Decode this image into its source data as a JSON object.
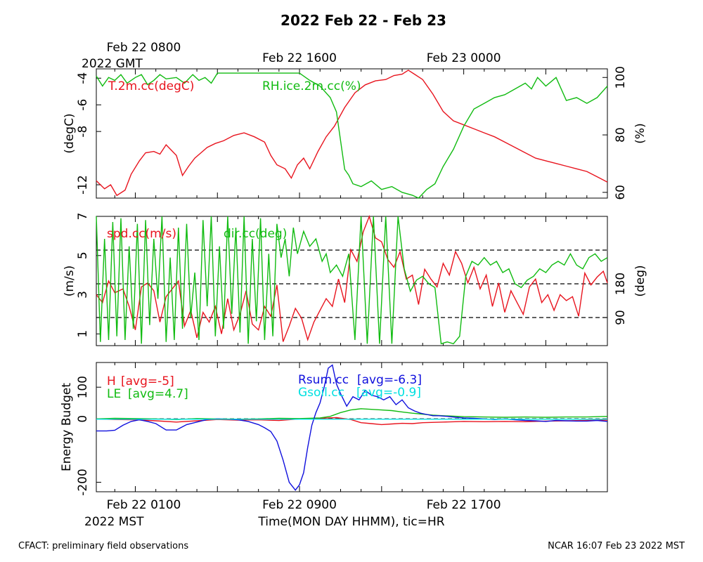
{
  "title": "2022 Feb 22 - Feb 23",
  "top_axis": {
    "ticks": [
      {
        "label": "Feb 22 0800",
        "hour": 0
      },
      {
        "label": "Feb 22 1600",
        "hour": 8
      },
      {
        "label": "Feb 23 0000",
        "hour": 16
      }
    ],
    "zone_label": "2022 GMT"
  },
  "bottom_axis": {
    "ticks": [
      {
        "label": "Feb 22 0100",
        "hour": 0
      },
      {
        "label": "Feb 22 0900",
        "hour": 8
      },
      {
        "label": "Feb 22 1700",
        "hour": 16
      }
    ],
    "zone_label": "2022 MST",
    "xlabel": "Time(MON DAY HHMM), tic=HR"
  },
  "footer": {
    "left": "CFACT: preliminary field observations",
    "right": "NCAR 16:07 Feb 23 2022 MST"
  },
  "colors": {
    "red": "#e8141e",
    "green": "#11bb11",
    "blue": "#1010dd",
    "cyan": "#00e0e0"
  },
  "chart_data": [
    {
      "type": "line",
      "panel": "temperature_rh",
      "xlabel": "",
      "ylabel": "(degC)",
      "y2label": "(%)",
      "x_range_hours": [
        -1.9,
        23
      ],
      "ylim": [
        -13,
        -3.3
      ],
      "y_ticks": [
        -4,
        -6,
        -8,
        -12
      ],
      "y2lim": [
        58,
        103
      ],
      "y2_ticks": [
        100,
        80,
        60
      ],
      "series": [
        {
          "name": "T.2m.cc(degC)",
          "axis": "left",
          "color": "red",
          "x": [
            -1.9,
            -1.5,
            -1.2,
            -0.9,
            -0.5,
            -0.2,
            0.2,
            0.5,
            0.9,
            1.2,
            1.5,
            2.0,
            2.3,
            2.6,
            2.9,
            3.2,
            3.5,
            3.9,
            4.3,
            4.8,
            5.3,
            5.8,
            6.3,
            6.6,
            6.9,
            7.3,
            7.6,
            7.9,
            8.2,
            8.5,
            8.9,
            9.3,
            9.7,
            10.2,
            10.7,
            11.2,
            11.7,
            12.2,
            12.6,
            13.0,
            13.3,
            13.6,
            14.0,
            14.5,
            15.0,
            15.5,
            16.0,
            16.5,
            17.0,
            17.5,
            18.0,
            18.5,
            19.0,
            19.5,
            20.0,
            20.5,
            21.0,
            21.5,
            22.0,
            22.5,
            23.0
          ],
          "y": [
            -11.7,
            -12.3,
            -12.0,
            -12.8,
            -12.4,
            -11.2,
            -10.2,
            -9.6,
            -9.5,
            -9.7,
            -9.0,
            -9.8,
            -11.3,
            -10.6,
            -10.0,
            -9.6,
            -9.2,
            -8.9,
            -8.7,
            -8.3,
            -8.1,
            -8.4,
            -8.8,
            -9.8,
            -10.5,
            -10.8,
            -11.5,
            -10.5,
            -10.0,
            -10.8,
            -9.5,
            -8.4,
            -7.6,
            -6.2,
            -5.1,
            -4.5,
            -4.2,
            -4.1,
            -3.8,
            -3.7,
            -3.4,
            -3.7,
            -4.1,
            -5.2,
            -6.5,
            -7.2,
            -7.5,
            -7.8,
            -8.1,
            -8.4,
            -8.8,
            -9.2,
            -9.6,
            -10.0,
            -10.2,
            -10.4,
            -10.6,
            -10.8,
            -11.0,
            -11.4,
            -11.8
          ]
        },
        {
          "name": "RH.ice.2m.cc(%)",
          "axis": "right",
          "color": "green",
          "x": [
            -1.9,
            -1.6,
            -1.3,
            -1.0,
            -0.7,
            -0.4,
            0.0,
            0.3,
            0.6,
            0.9,
            1.2,
            1.5,
            2.0,
            2.4,
            2.8,
            3.1,
            3.4,
            3.7,
            4.0,
            4.5,
            5.0,
            6.0,
            7.0,
            8.0,
            8.5,
            9.0,
            9.5,
            9.8,
            10.2,
            10.4,
            10.6,
            11.0,
            11.5,
            12.0,
            12.5,
            13.0,
            13.5,
            13.8,
            14.2,
            14.6,
            15.0,
            15.5,
            16.0,
            16.5,
            17.0,
            17.5,
            18.0,
            18.5,
            19.0,
            19.3,
            19.6,
            20.0,
            20.5,
            21.0,
            21.5,
            22.0,
            22.5,
            23.0
          ],
          "y": [
            100.5,
            97,
            100,
            99,
            101,
            98,
            100,
            101,
            97.5,
            99,
            101,
            99.5,
            100,
            98,
            101,
            99,
            100,
            98,
            101.5,
            101.5,
            101.5,
            101.5,
            101.5,
            101.5,
            99,
            97,
            93,
            88,
            68,
            66,
            63,
            62,
            64,
            61,
            62,
            60,
            59,
            57,
            61,
            63,
            69,
            75,
            83,
            89,
            91,
            93,
            94,
            96,
            98,
            96,
            100,
            97,
            100,
            92,
            93,
            91,
            93,
            97
          ]
        }
      ]
    },
    {
      "type": "line",
      "panel": "wind",
      "xlabel": "",
      "ylabel": "(m/s)",
      "y2label": "(deg)",
      "x_range_hours": [
        -1.9,
        23
      ],
      "ylim": [
        0.4,
        7
      ],
      "y_ticks": [
        1,
        3,
        5,
        7
      ],
      "y2lim": [
        15,
        360
      ],
      "y2_ticks": [
        90,
        180
      ],
      "reference_lines_deg": [
        90,
        180,
        270
      ],
      "series": [
        {
          "name": "spd.cc(m/s)",
          "axis": "left",
          "color": "red",
          "x": [
            -1.9,
            -1.6,
            -1.3,
            -1.0,
            -0.6,
            -0.3,
            0.0,
            0.3,
            0.6,
            0.9,
            1.2,
            1.5,
            1.8,
            2.1,
            2.4,
            2.7,
            3.0,
            3.3,
            3.6,
            3.9,
            4.2,
            4.5,
            4.8,
            5.1,
            5.4,
            5.7,
            6.0,
            6.3,
            6.6,
            6.9,
            7.2,
            7.5,
            7.8,
            8.1,
            8.4,
            8.7,
            9.0,
            9.3,
            9.6,
            9.9,
            10.2,
            10.5,
            10.8,
            11.1,
            11.4,
            11.7,
            12.0,
            12.3,
            12.6,
            12.9,
            13.2,
            13.5,
            13.8,
            14.1,
            14.4,
            14.7,
            15.0,
            15.3,
            15.6,
            15.9,
            16.2,
            16.5,
            16.8,
            17.1,
            17.4,
            17.7,
            18.0,
            18.3,
            18.6,
            18.9,
            19.2,
            19.5,
            19.8,
            20.1,
            20.4,
            20.7,
            21.0,
            21.3,
            21.6,
            21.9,
            22.2,
            22.5,
            22.8,
            23.0
          ],
          "y": [
            3.0,
            2.6,
            3.7,
            3.1,
            3.3,
            2.4,
            1.2,
            3.4,
            3.6,
            3.2,
            1.6,
            2.9,
            3.3,
            3.7,
            1.4,
            2.2,
            0.8,
            2.1,
            1.6,
            2.4,
            1.0,
            2.8,
            1.2,
            2.0,
            3.2,
            1.5,
            1.2,
            2.4,
            1.9,
            3.5,
            0.6,
            1.4,
            2.3,
            1.8,
            0.7,
            1.6,
            2.2,
            2.8,
            2.4,
            3.8,
            2.6,
            5.3,
            4.7,
            6.2,
            7.0,
            5.9,
            5.7,
            4.8,
            4.4,
            5.2,
            3.8,
            4.0,
            2.5,
            4.3,
            3.8,
            3.4,
            4.6,
            4.0,
            5.2,
            4.6,
            3.6,
            4.4,
            3.3,
            4.0,
            2.4,
            3.6,
            2.1,
            3.2,
            2.6,
            2.0,
            3.4,
            3.8,
            2.6,
            3.0,
            2.2,
            3.0,
            2.7,
            2.9,
            1.9,
            4.1,
            3.5,
            3.9,
            4.2,
            3.6
          ]
        },
        {
          "name": "dir.cc(deg)",
          "axis": "right",
          "color": "green",
          "x": [
            -1.9,
            -1.7,
            -1.5,
            -1.3,
            -1.1,
            -0.9,
            -0.7,
            -0.5,
            -0.3,
            -0.1,
            0.1,
            0.3,
            0.5,
            0.7,
            0.9,
            1.1,
            1.3,
            1.5,
            1.7,
            1.9,
            2.1,
            2.3,
            2.5,
            2.7,
            2.9,
            3.1,
            3.3,
            3.5,
            3.7,
            3.9,
            4.1,
            4.3,
            4.5,
            4.7,
            4.9,
            5.1,
            5.3,
            5.5,
            5.7,
            5.9,
            6.1,
            6.3,
            6.5,
            6.7,
            6.9,
            7.1,
            7.3,
            7.5,
            7.7,
            7.9,
            8.2,
            8.5,
            8.8,
            9.1,
            9.3,
            9.5,
            9.8,
            10.1,
            10.4,
            10.7,
            11.0,
            11.3,
            11.6,
            11.9,
            12.2,
            12.5,
            12.8,
            13.1,
            13.4,
            13.7,
            14.0,
            14.3,
            14.6,
            14.9,
            15.2,
            15.5,
            15.8,
            16.1,
            16.4,
            16.7,
            17.0,
            17.3,
            17.6,
            17.9,
            18.2,
            18.5,
            18.8,
            19.1,
            19.4,
            19.7,
            20.0,
            20.3,
            20.6,
            20.9,
            21.2,
            21.5,
            21.8,
            22.1,
            22.4,
            22.7,
            23.0
          ],
          "y": [
            360,
            25,
            300,
            30,
            345,
            40,
            355,
            30,
            280,
            60,
            340,
            20,
            350,
            70,
            300,
            140,
            360,
            25,
            250,
            30,
            330,
            60,
            340,
            90,
            210,
            30,
            350,
            120,
            360,
            40,
            280,
            60,
            360,
            100,
            330,
            50,
            360,
            20,
            300,
            80,
            355,
            30,
            260,
            40,
            340,
            250,
            300,
            200,
            330,
            260,
            320,
            280,
            300,
            240,
            260,
            210,
            230,
            200,
            260,
            30,
            360,
            20,
            360,
            20,
            360,
            20,
            360,
            220,
            160,
            190,
            200,
            180,
            170,
            20,
            25,
            20,
            40,
            200,
            240,
            230,
            250,
            230,
            240,
            210,
            220,
            180,
            170,
            190,
            200,
            220,
            210,
            230,
            240,
            230,
            260,
            230,
            220,
            250,
            260,
            240,
            250
          ]
        }
      ]
    },
    {
      "type": "line",
      "panel": "energy_budget",
      "xlabel": "Time(MON DAY HHMM), tic=HR",
      "ylabel": "Energy Budget",
      "x_range_hours": [
        -1.9,
        23
      ],
      "ylim": [
        -230,
        178
      ],
      "y_ticks": [
        100,
        0,
        -200
      ],
      "reference_line": 0,
      "series": [
        {
          "name": "H",
          "avg_label": "[avg=-5]",
          "color": "red",
          "x": [
            -1.9,
            -1.0,
            0.0,
            1.0,
            2.0,
            3.0,
            4.0,
            5.0,
            6.0,
            7.0,
            8.0,
            9.0,
            9.8,
            10.5,
            11.0,
            11.5,
            12.0,
            12.5,
            13.0,
            13.5,
            14.0,
            15.0,
            16.0,
            17.0,
            18.0,
            19.0,
            20.0,
            21.0,
            22.0,
            23.0
          ],
          "y": [
            0,
            -2,
            -3,
            -6,
            -10,
            -6,
            -2,
            -4,
            -3,
            -5,
            0,
            2,
            4,
            -2,
            -12,
            -15,
            -18,
            -16,
            -14,
            -15,
            -12,
            -10,
            -8,
            -9,
            -8,
            -9,
            -7,
            -6,
            -5,
            -4
          ]
        },
        {
          "name": "LE",
          "avg_label": "[avg=4.7]",
          "color": "green",
          "x": [
            -1.9,
            -1.0,
            0.0,
            1.0,
            2.0,
            3.0,
            4.0,
            5.0,
            6.0,
            7.0,
            8.0,
            9.0,
            9.5,
            10.0,
            10.5,
            11.0,
            11.5,
            12.0,
            12.5,
            13.0,
            13.5,
            14.0,
            14.5,
            15.0,
            16.0,
            17.0,
            18.0,
            19.0,
            20.0,
            21.0,
            22.0,
            23.0
          ],
          "y": [
            0,
            2,
            1,
            0,
            -2,
            1,
            0,
            -1,
            0,
            2,
            1,
            3,
            8,
            20,
            28,
            32,
            30,
            28,
            26,
            22,
            18,
            15,
            12,
            10,
            7,
            6,
            5,
            6,
            5,
            6,
            6,
            8
          ]
        },
        {
          "name": "Rsum.cc",
          "avg_label": "[avg=-6.3]",
          "color": "blue",
          "x": [
            -1.9,
            -1.4,
            -1.0,
            -0.6,
            -0.2,
            0.2,
            0.6,
            1.0,
            1.5,
            2.0,
            2.5,
            3.0,
            3.5,
            4.0,
            4.5,
            5.0,
            5.5,
            6.0,
            6.3,
            6.6,
            6.9,
            7.2,
            7.5,
            7.8,
            8.0,
            8.2,
            8.4,
            8.6,
            8.8,
            9.0,
            9.2,
            9.4,
            9.6,
            9.8,
            10.0,
            10.3,
            10.6,
            10.9,
            11.2,
            11.5,
            11.8,
            12.1,
            12.4,
            12.7,
            13.0,
            13.3,
            13.6,
            13.9,
            14.2,
            14.5,
            14.8,
            15.2,
            15.6,
            16.0,
            16.5,
            17.0,
            17.5,
            18.0,
            18.5,
            19.0,
            19.5,
            20.0,
            20.5,
            21.0,
            21.5,
            22.0,
            22.5,
            23.0
          ],
          "y": [
            -38,
            -38,
            -36,
            -20,
            -8,
            -3,
            -8,
            -15,
            -35,
            -35,
            -18,
            -10,
            -2,
            0,
            -1,
            -3,
            -8,
            -18,
            -28,
            -40,
            -70,
            -130,
            -200,
            -225,
            -208,
            -170,
            -90,
            -20,
            20,
            50,
            100,
            160,
            170,
            110,
            80,
            40,
            70,
            60,
            90,
            75,
            70,
            60,
            70,
            45,
            60,
            35,
            25,
            18,
            14,
            10,
            10,
            8,
            5,
            3,
            2,
            0,
            -2,
            0,
            -3,
            -5,
            -6,
            -8,
            -5,
            -6,
            -7,
            -7,
            -5,
            -8
          ]
        },
        {
          "name": "Gsoil.cc",
          "avg_label": "[avg=-0.9]",
          "color": "cyan",
          "x": [
            -1.9,
            23.0
          ],
          "y": [
            -1,
            -1
          ]
        }
      ]
    }
  ]
}
